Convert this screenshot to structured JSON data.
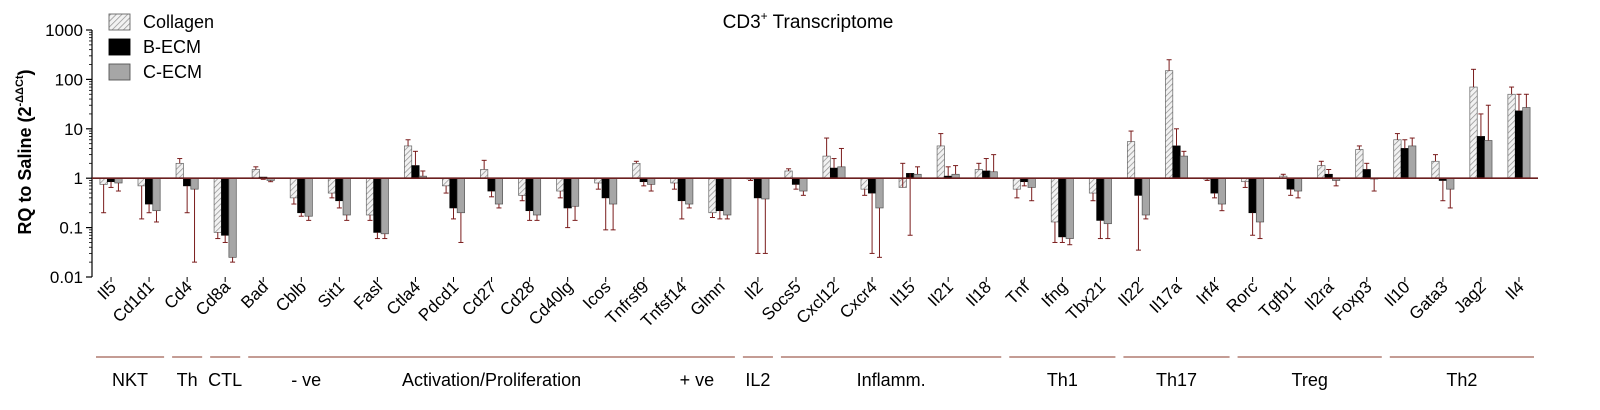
{
  "chart_data": {
    "type": "bar",
    "title": "CD3",
    "title_superscript": "+",
    "title_suffix": " Transcriptome",
    "ylabel": "RQ to Saline (2",
    "ylabel_superscript": "-ΔΔCt",
    "ylabel_suffix": ")",
    "yscale": "log",
    "ylim": [
      0.01,
      1000
    ],
    "yticks": [
      {
        "value": 0.01,
        "label": "0.01"
      },
      {
        "value": 0.1,
        "label": "0.1"
      },
      {
        "value": 1,
        "label": "1"
      },
      {
        "value": 10,
        "label": "10"
      },
      {
        "value": 100,
        "label": "100"
      },
      {
        "value": 1000,
        "label": "1000"
      }
    ],
    "baseline": 1,
    "legend_position": "top-left",
    "series": [
      {
        "name": "Collagen",
        "color": "#e4e4e4",
        "pattern": "hatched"
      },
      {
        "name": "B-ECM",
        "color": "#000000",
        "pattern": "solid"
      },
      {
        "name": "C-ECM",
        "color": "#a6a6a6",
        "pattern": "solid"
      }
    ],
    "categories": [
      "Il5",
      "Cd1d1",
      "Cd4",
      "Cd8a",
      "Bad",
      "Cblb",
      "Sit1",
      "Fasl",
      "Ctla4",
      "Pdcd1",
      "Cd27",
      "Cd28",
      "Cd40lg",
      "Icos",
      "Tnfrsf9",
      "Tnfsf14",
      "Glmn",
      "Il2",
      "Socs5",
      "Cxcl12",
      "Cxcr4",
      "Il15",
      "Il21",
      "Il18",
      "Tnf",
      "Ifng",
      "Tbx21",
      "Il22",
      "Il17a",
      "Irf4",
      "Rorc",
      "Tgfb1",
      "Il2ra",
      "Foxp3",
      "Il10",
      "Gata3",
      "Jag2",
      "Il4"
    ],
    "values": {
      "Collagen": [
        0.75,
        0.7,
        2.0,
        0.08,
        1.5,
        0.4,
        0.5,
        0.18,
        4.5,
        0.7,
        1.5,
        0.45,
        0.55,
        0.8,
        2.0,
        0.8,
        0.2,
        1.0,
        1.4,
        2.8,
        0.6,
        0.65,
        4.5,
        1.5,
        0.6,
        0.13,
        0.5,
        5.5,
        150,
        1.0,
        0.85,
        1.1,
        1.8,
        3.8,
        6.0,
        2.2,
        70,
        50
      ],
      "B-ECM": [
        0.85,
        0.3,
        0.7,
        0.07,
        1.05,
        0.2,
        0.35,
        0.08,
        1.8,
        0.25,
        0.55,
        0.22,
        0.25,
        0.4,
        0.85,
        0.35,
        0.22,
        0.4,
        0.75,
        1.6,
        0.5,
        1.25,
        1.1,
        1.4,
        0.85,
        0.065,
        0.14,
        0.45,
        4.5,
        0.5,
        0.2,
        0.6,
        1.2,
        1.5,
        4.0,
        0.9,
        7.0,
        23
      ],
      "C-ECM": [
        0.8,
        0.22,
        0.6,
        0.025,
        0.9,
        0.17,
        0.18,
        0.075,
        1.1,
        0.2,
        0.3,
        0.18,
        0.27,
        0.3,
        0.75,
        0.3,
        0.18,
        0.38,
        0.55,
        1.7,
        0.25,
        1.2,
        1.2,
        1.35,
        0.65,
        0.06,
        0.12,
        0.18,
        2.8,
        0.3,
        0.13,
        0.55,
        0.9,
        1.0,
        4.5,
        0.6,
        5.8,
        27
      ]
    },
    "error_bars": {
      "Collagen": [
        0.2,
        0.15,
        2.5,
        0.06,
        1.7,
        0.3,
        0.4,
        0.14,
        6.0,
        0.5,
        2.3,
        0.35,
        0.4,
        0.6,
        2.2,
        0.6,
        0.16,
        0.9,
        1.55,
        6.5,
        0.45,
        2.0,
        8.0,
        2.0,
        0.4,
        0.05,
        0.35,
        9.0,
        250,
        0.9,
        0.65,
        1.2,
        2.2,
        4.5,
        8.0,
        3.0,
        160,
        70
      ],
      "B-ECM": [
        0.65,
        0.2,
        0.2,
        0.05,
        0.95,
        0.17,
        0.25,
        0.06,
        3.5,
        0.15,
        0.42,
        0.14,
        0.1,
        0.09,
        0.7,
        0.15,
        0.15,
        0.03,
        0.6,
        2.5,
        0.03,
        0.07,
        1.7,
        2.5,
        0.7,
        0.05,
        0.06,
        0.035,
        10,
        0.4,
        0.07,
        0.45,
        1.5,
        2.0,
        6.0,
        0.35,
        20,
        50
      ],
      "C-ECM": [
        0.55,
        0.13,
        0.02,
        0.02,
        0.85,
        0.14,
        0.14,
        0.06,
        1.4,
        0.05,
        0.25,
        0.14,
        0.14,
        0.09,
        0.55,
        0.25,
        0.15,
        0.03,
        0.45,
        4.0,
        0.025,
        1.7,
        1.8,
        3.0,
        0.35,
        0.045,
        0.06,
        0.15,
        3.5,
        0.22,
        0.06,
        0.4,
        0.7,
        0.55,
        6.5,
        0.25,
        30,
        50
      ]
    },
    "groups": [
      {
        "label": "NKT",
        "start": "Il5",
        "end": "Cd1d1"
      },
      {
        "label": "Th",
        "start": "Cd4",
        "end": "Cd4"
      },
      {
        "label": "CTL",
        "start": "Cd8a",
        "end": "Cd8a"
      },
      {
        "label": "Activation/Proliferation",
        "start": "Bad",
        "end": "Glmn",
        "left_note": "- ve",
        "right_note": "+ ve"
      },
      {
        "label": "IL2",
        "start": "Il2",
        "end": "Il2"
      },
      {
        "label": "Inflamm.",
        "start": "Socs5",
        "end": "Il18"
      },
      {
        "label": "Th1",
        "start": "Tnf",
        "end": "Tbx21"
      },
      {
        "label": "Th17",
        "start": "Il22",
        "end": "Irf4"
      },
      {
        "label": "Treg",
        "start": "Rorc",
        "end": "Foxp3"
      },
      {
        "label": "Th2",
        "start": "Il10",
        "end": "Il4"
      }
    ]
  }
}
